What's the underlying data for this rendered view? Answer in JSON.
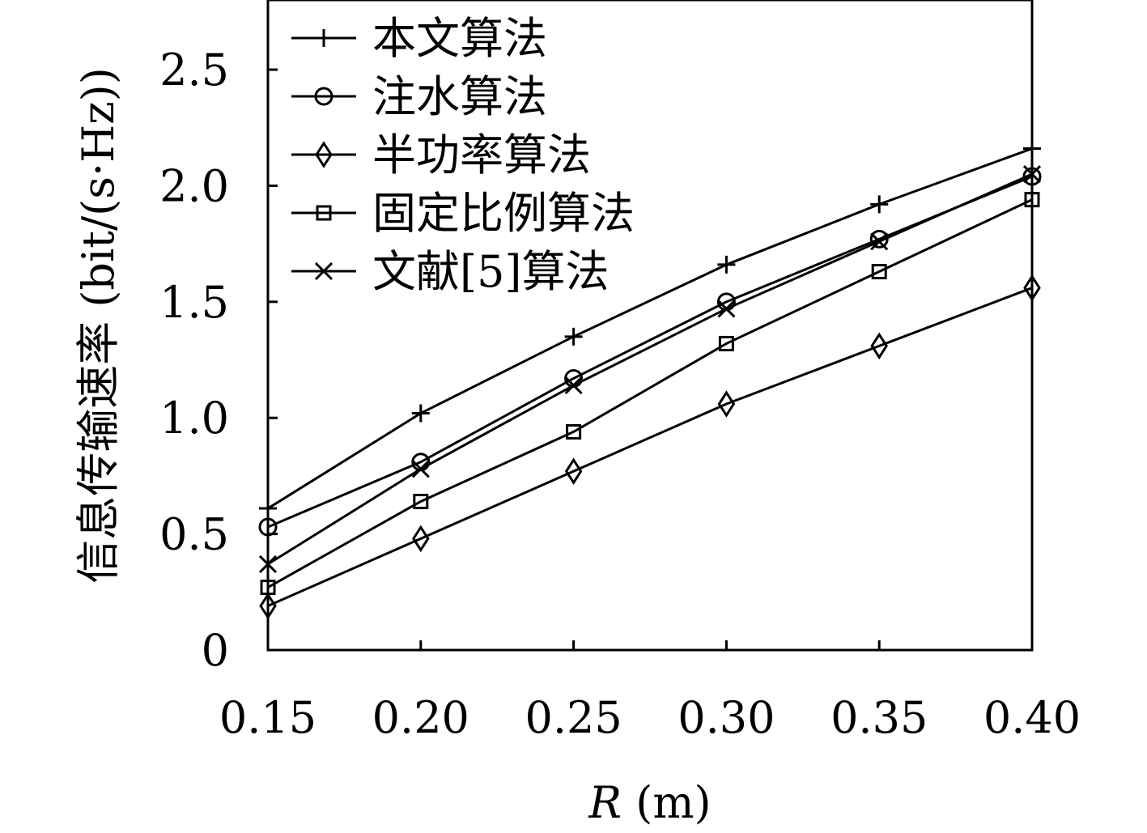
{
  "chart_data": {
    "type": "line",
    "title": "",
    "xlabel_var": "R",
    "xlabel_unit": "(m)",
    "ylabel": "信息传输速率 (bit/(s·Hz))",
    "x": [
      0.15,
      0.2,
      0.25,
      0.3,
      0.35,
      0.4
    ],
    "x_tick_labels": [
      "0.15",
      "0.20",
      "0.25",
      "0.30",
      "0.35",
      "0.40"
    ],
    "xlim": [
      0.15,
      0.4
    ],
    "ylim": [
      0,
      2.8
    ],
    "y_ticks": [
      0,
      0.5,
      1.0,
      1.5,
      2.0,
      2.5
    ],
    "y_tick_labels": [
      "0",
      "0.5",
      "1.0",
      "1.5",
      "2.0",
      "2.5"
    ],
    "grid": false,
    "legend_position": "top-left",
    "series": [
      {
        "name": "本文算法",
        "marker": "plus",
        "values": [
          0.61,
          1.02,
          1.35,
          1.66,
          1.92,
          2.16
        ]
      },
      {
        "name": "注水算法",
        "marker": "circle",
        "values": [
          0.53,
          0.81,
          1.17,
          1.5,
          1.77,
          2.04
        ]
      },
      {
        "name": "半功率算法",
        "marker": "diamond",
        "values": [
          0.19,
          0.48,
          0.77,
          1.06,
          1.31,
          1.56
        ]
      },
      {
        "name": "固定比例算法",
        "marker": "square",
        "values": [
          0.27,
          0.64,
          0.94,
          1.32,
          1.63,
          1.94
        ]
      },
      {
        "name": "文献[5]算法",
        "marker": "cross",
        "values": [
          0.37,
          0.78,
          1.14,
          1.47,
          1.76,
          2.05
        ]
      }
    ]
  }
}
